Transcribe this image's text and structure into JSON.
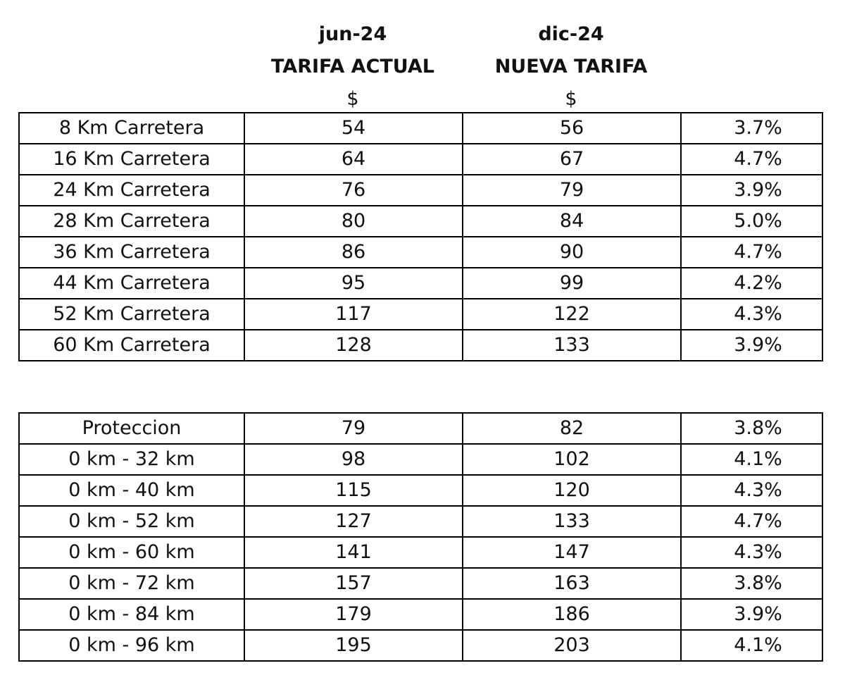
{
  "headers": [
    {
      "period": "jun-24",
      "label": "TARIFA ACTUAL",
      "currency": "$"
    },
    {
      "period": "dic-24",
      "label": "NUEVA TARIFA",
      "currency": "$"
    }
  ],
  "rutas": [
    {
      "concepto": "8 Km Carretera",
      "actual": "54",
      "nueva": "56",
      "variacion": "3.7%"
    },
    {
      "concepto": "16 Km Carretera",
      "actual": "64",
      "nueva": "67",
      "variacion": "4.7%"
    },
    {
      "concepto": "24 Km Carretera",
      "actual": "76",
      "nueva": "79",
      "variacion": "3.9%"
    },
    {
      "concepto": "28 Km Carretera",
      "actual": "80",
      "nueva": "84",
      "variacion": "5.0%"
    },
    {
      "concepto": "36 Km Carretera",
      "actual": "86",
      "nueva": "90",
      "variacion": "4.7%"
    },
    {
      "concepto": "44 Km Carretera",
      "actual": "95",
      "nueva": "99",
      "variacion": "4.2%"
    },
    {
      "concepto": "52 Km Carretera",
      "actual": "117",
      "nueva": "122",
      "variacion": "4.3%"
    },
    {
      "concepto": "60 Km Carretera",
      "actual": "128",
      "nueva": "133",
      "variacion": "3.9%"
    }
  ],
  "zonas": [
    {
      "concepto": "Proteccion",
      "actual": "79",
      "nueva": "82",
      "variacion": "3.8%"
    },
    {
      "concepto": "0 km - 32 km",
      "actual": "98",
      "nueva": "102",
      "variacion": "4.1%"
    },
    {
      "concepto": "0 km - 40 km",
      "actual": "115",
      "nueva": "120",
      "variacion": "4.3%"
    },
    {
      "concepto": "0 km - 52 km",
      "actual": "127",
      "nueva": "133",
      "variacion": "4.7%"
    },
    {
      "concepto": "0 km - 60 km",
      "actual": "141",
      "nueva": "147",
      "variacion": "4.3%"
    },
    {
      "concepto": "0 km - 72 km",
      "actual": "157",
      "nueva": "163",
      "variacion": "3.8%"
    },
    {
      "concepto": "0 km - 84 km",
      "actual": "179",
      "nueva": "186",
      "variacion": "3.9%"
    },
    {
      "concepto": "0 km - 96 km",
      "actual": "195",
      "nueva": "203",
      "variacion": "4.1%"
    }
  ]
}
